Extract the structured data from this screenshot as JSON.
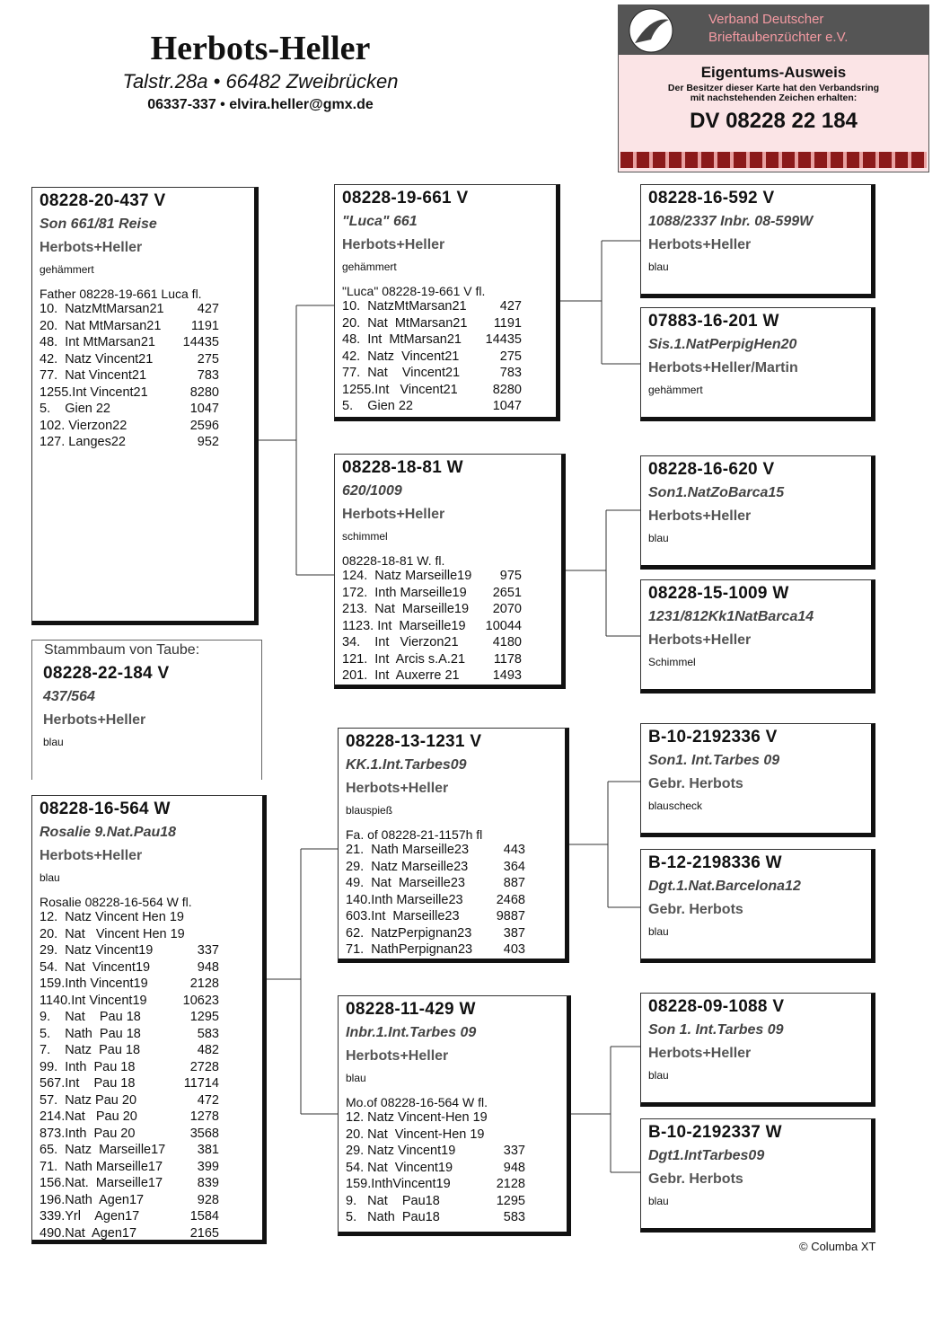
{
  "header": {
    "name": "Herbots-Heller",
    "address": "Talstr.28a • 66482 Zweibrücken",
    "contact": "06337-337 • elvira.heller@gmx.de"
  },
  "card": {
    "org": "Verband Deutscher Brieftaubenzüchter e.V.",
    "title": "Eigentums-Ausweis",
    "text": "Der Besitzer dieser Karte hat den Verbandsring mit nachstehenden Zeichen erhalten:",
    "ring": "DV 08228 22 184"
  },
  "subject": {
    "label": "Stammbaum von Taube:",
    "ring": "08228-22-184 V",
    "name": "437/564",
    "breeder": "Herbots+Heller",
    "color": "blau"
  },
  "parents": [
    {
      "ring": "08228-20-437 V",
      "name": "Son 661/81 Reise",
      "breeder": "Herbots+Heller",
      "color": "gehämmert",
      "note": "Father 08228-19-661 Luca fl.",
      "results": [
        [
          "10.  NatzMtMarsan21",
          "427"
        ],
        [
          "20.  Nat MtMarsan21",
          "1191"
        ],
        [
          "48.  Int MtMarsan21",
          "14435"
        ],
        [
          "42.  Natz Vincent21",
          "275"
        ],
        [
          "77.  Nat Vincent21",
          "783"
        ],
        [
          "1255.Int Vincent21",
          "8280"
        ],
        [
          "5.    Gien 22",
          "1047"
        ],
        [
          "102. Vierzon22",
          "2596"
        ],
        [
          "127. Langes22",
          "952"
        ]
      ]
    },
    {
      "ring": "08228-16-564 W",
      "name": "Rosalie 9.Nat.Pau18",
      "breeder": "Herbots+Heller",
      "color": "blau",
      "note": "Rosalie 08228-16-564 W fl.",
      "results": [
        [
          "12.  Natz Vincent Hen 19"
        ],
        [
          "20.  Nat   Vincent Hen 19"
        ],
        [
          "29.  Natz Vincent19",
          "337"
        ],
        [
          "54.  Nat  Vincent19",
          "948"
        ],
        [
          "159.Inth Vincent19",
          "2128"
        ],
        [
          "1140.Int Vincent19",
          "10623"
        ],
        [
          "9.    Nat    Pau 18",
          "1295"
        ],
        [
          "5.    Nath  Pau 18",
          "583"
        ],
        [
          "7.    Natz  Pau 18",
          "482"
        ],
        [
          "99.  Inth  Pau 18",
          "2728"
        ],
        [
          "567.Int    Pau 18",
          "11714"
        ],
        [
          "57.  Natz Pau 20",
          "472"
        ],
        [
          "214.Nat   Pau 20",
          "1278"
        ],
        [
          "873.Inth  Pau 20",
          "3568"
        ],
        [
          "65.  Natz  Marseille17",
          "381"
        ],
        [
          "71.  Nath Marseille17",
          "399"
        ],
        [
          "156.Nat.  Marseille17",
          "839"
        ],
        [
          "196.Nath  Agen17",
          "928"
        ],
        [
          "339.Yrl    Agen17",
          "1584"
        ],
        [
          "490.Nat  Agen17",
          "2165"
        ]
      ]
    }
  ],
  "grandparents": [
    {
      "ring": "08228-19-661 V",
      "name": "\"Luca\" 661",
      "breeder": "Herbots+Heller",
      "color": "gehämmert",
      "note": "\"Luca\" 08228-19-661 V fl.",
      "results": [
        [
          "10.  NatzMtMarsan21",
          "427"
        ],
        [
          "20.  Nat  MtMarsan21",
          "1191"
        ],
        [
          "48.  Int  MtMarsan21",
          "14435"
        ],
        [
          "42.  Natz  Vincent21",
          "275"
        ],
        [
          "77.  Nat    Vincent21",
          "783"
        ],
        [
          "1255.Int   Vincent21",
          "8280"
        ],
        [
          "5.    Gien 22",
          "1047"
        ]
      ]
    },
    {
      "ring": "08228-18-81 W",
      "name": "620/1009",
      "breeder": "Herbots+Heller",
      "color": "schimmel",
      "note": "08228-18-81 W. fl.",
      "results": [
        [
          "124.  Natz Marseille19",
          "975"
        ],
        [
          "172.  Inth Marseille19",
          "2651"
        ],
        [
          "213.  Nat  Marseille19",
          "2070"
        ],
        [
          "1123. Int  Marseille19",
          "10044"
        ],
        [
          "34.    Int   Vierzon21",
          "4180"
        ],
        [
          "121.  Int  Arcis s.A.21",
          "1178"
        ],
        [
          "201.  Int  Auxerre 21",
          "1493"
        ]
      ]
    },
    {
      "ring": "08228-13-1231 V",
      "name": "KK.1.Int.Tarbes09",
      "breeder": "Herbots+Heller",
      "color": "blauspieß",
      "note": "Fa. of 08228-21-1157h fl",
      "results": [
        [
          "21.  Nath Marseille23",
          "443"
        ],
        [
          "29.  Natz Marseille23",
          "364"
        ],
        [
          "49.  Nat  Marseille23",
          "887"
        ],
        [
          "140.Inth Marseille23",
          "2468"
        ],
        [
          "603.Int  Marseille23",
          "9887"
        ],
        [
          "62.  NatzPerpignan23",
          "387"
        ],
        [
          "71.  NathPerpignan23",
          "403"
        ]
      ]
    },
    {
      "ring": "08228-11-429 W",
      "name": "Inbr.1.Int.Tarbes 09",
      "breeder": "Herbots+Heller",
      "color": "blau",
      "note": "Mo.of 08228-16-564 W fl.",
      "results": [
        [
          "12. Natz Vincent-Hen 19"
        ],
        [
          "20. Nat  Vincent-Hen 19"
        ],
        [
          "29. Natz Vincent19",
          "337"
        ],
        [
          "54. Nat  Vincent19",
          "948"
        ],
        [
          "159.InthVincent19",
          "2128"
        ],
        [
          "9.   Nat    Pau18",
          "1295"
        ],
        [
          "5.   Nath  Pau18",
          "583"
        ]
      ]
    }
  ],
  "great_grandparents": [
    {
      "ring": "08228-16-592 V",
      "name": "1088/2337 Inbr. 08-599W",
      "breeder": "Herbots+Heller",
      "color": "blau"
    },
    {
      "ring": "07883-16-201 W",
      "name": "Sis.1.NatPerpigHen20",
      "breeder": "Herbots+Heller/Martin",
      "color": "gehämmert"
    },
    {
      "ring": "08228-16-620 V",
      "name": "Son1.NatZoBarca15",
      "breeder": "Herbots+Heller",
      "color": "blau"
    },
    {
      "ring": "08228-15-1009 W",
      "name": "1231/812Kk1NatBarca14",
      "breeder": "Herbots+Heller",
      "color": "Schimmel"
    },
    {
      "ring": "B-10-2192336 V",
      "name": "Son1. Int.Tarbes 09",
      "breeder": "Gebr. Herbots",
      "color": "blauscheck"
    },
    {
      "ring": "B-12-2198336 W",
      "name": "Dgt.1.Nat.Barcelona12",
      "breeder": "Gebr. Herbots",
      "color": "blau"
    },
    {
      "ring": "08228-09-1088 V",
      "name": "Son 1. Int.Tarbes 09",
      "breeder": "Herbots+Heller",
      "color": "blau"
    },
    {
      "ring": "B-10-2192337 W",
      "name": "Dgt1.IntTarbes09",
      "breeder": "Gebr. Herbots",
      "color": "blau"
    }
  ],
  "footer": {
    "copyright": "© Columba XT"
  }
}
